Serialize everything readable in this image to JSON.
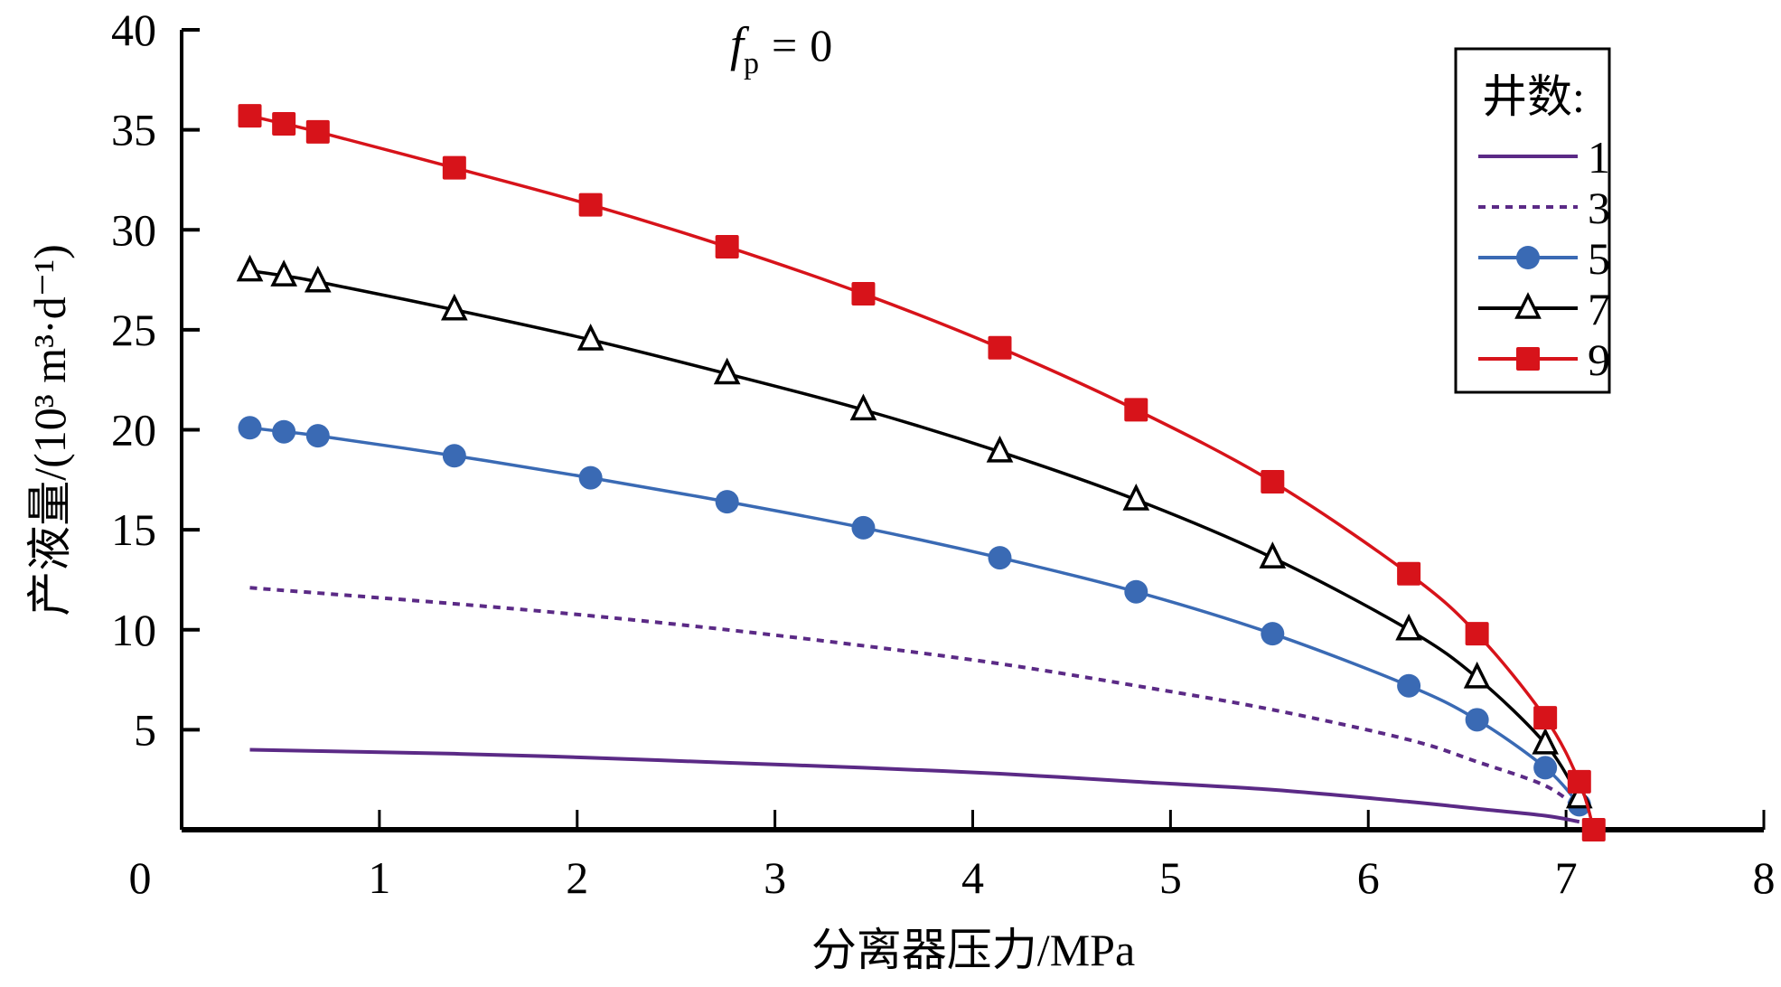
{
  "chart_data": {
    "type": "line",
    "title": "",
    "annotation": {
      "symbol": "f",
      "subscript": "p",
      "equals": "=",
      "value": "0"
    },
    "xlabel": "分离器压力/MPa",
    "ylabel": "产液量/(10³ m³·d⁻¹)",
    "xlim": [
      0,
      8
    ],
    "ylim": [
      0,
      40
    ],
    "xticks": [
      "0",
      "1",
      "2",
      "3",
      "4",
      "5",
      "6",
      "7",
      "8"
    ],
    "yticks": [
      "5",
      "10",
      "15",
      "20",
      "25",
      "30",
      "35",
      "40"
    ],
    "grid": false,
    "legend": {
      "title": "井数:",
      "placement": "top-right"
    },
    "series": [
      {
        "name": "1",
        "color": "#5b2a86",
        "style": "solid",
        "marker": "none",
        "x": [
          0.345,
          1.379,
          2.068,
          2.758,
          3.447,
          4.137,
          4.826,
          5.516,
          6.205,
          6.55,
          6.895,
          7.067
        ],
        "y": [
          4.0,
          3.8,
          3.6,
          3.35,
          3.1,
          2.8,
          2.4,
          2.0,
          1.4,
          1.05,
          0.7,
          0.4
        ]
      },
      {
        "name": "3",
        "color": "#5b2a86",
        "style": "dashed",
        "marker": "none",
        "x": [
          0.345,
          1.379,
          2.068,
          2.758,
          3.447,
          4.137,
          4.826,
          5.516,
          6.205,
          6.55,
          6.895,
          7.067
        ],
        "y": [
          12.1,
          11.3,
          10.7,
          10.0,
          9.2,
          8.3,
          7.2,
          6.0,
          4.5,
          3.4,
          2.2,
          1.0
        ]
      },
      {
        "name": "5",
        "color": "#3a6ab4",
        "style": "solid",
        "marker": "circle",
        "x": [
          0.345,
          0.517,
          0.689,
          1.379,
          2.068,
          2.758,
          3.447,
          4.137,
          4.826,
          5.516,
          6.205,
          6.55,
          6.895,
          7.067
        ],
        "y": [
          20.1,
          19.9,
          19.7,
          18.7,
          17.6,
          16.4,
          15.1,
          13.6,
          11.9,
          9.8,
          7.2,
          5.5,
          3.1,
          1.25
        ]
      },
      {
        "name": "7",
        "color": "#000000",
        "style": "solid",
        "marker": "triangle",
        "x": [
          0.345,
          0.517,
          0.689,
          1.379,
          2.068,
          2.758,
          3.447,
          4.137,
          4.826,
          5.516,
          6.205,
          6.55,
          6.895,
          7.067
        ],
        "y": [
          27.95,
          27.7,
          27.4,
          26.0,
          24.5,
          22.8,
          21.0,
          18.9,
          16.5,
          13.6,
          10.0,
          7.6,
          4.3,
          1.6
        ]
      },
      {
        "name": "9",
        "color": "#d7131a",
        "style": "solid",
        "marker": "square",
        "x": [
          0.345,
          0.517,
          0.689,
          1.379,
          2.068,
          2.758,
          3.447,
          4.137,
          4.826,
          5.516,
          6.205,
          6.55,
          6.895,
          7.067,
          7.14
        ],
        "y": [
          35.7,
          35.3,
          34.9,
          33.1,
          31.25,
          29.15,
          26.8,
          24.1,
          21.0,
          17.4,
          12.8,
          9.8,
          5.6,
          2.4,
          0.0
        ]
      }
    ]
  }
}
